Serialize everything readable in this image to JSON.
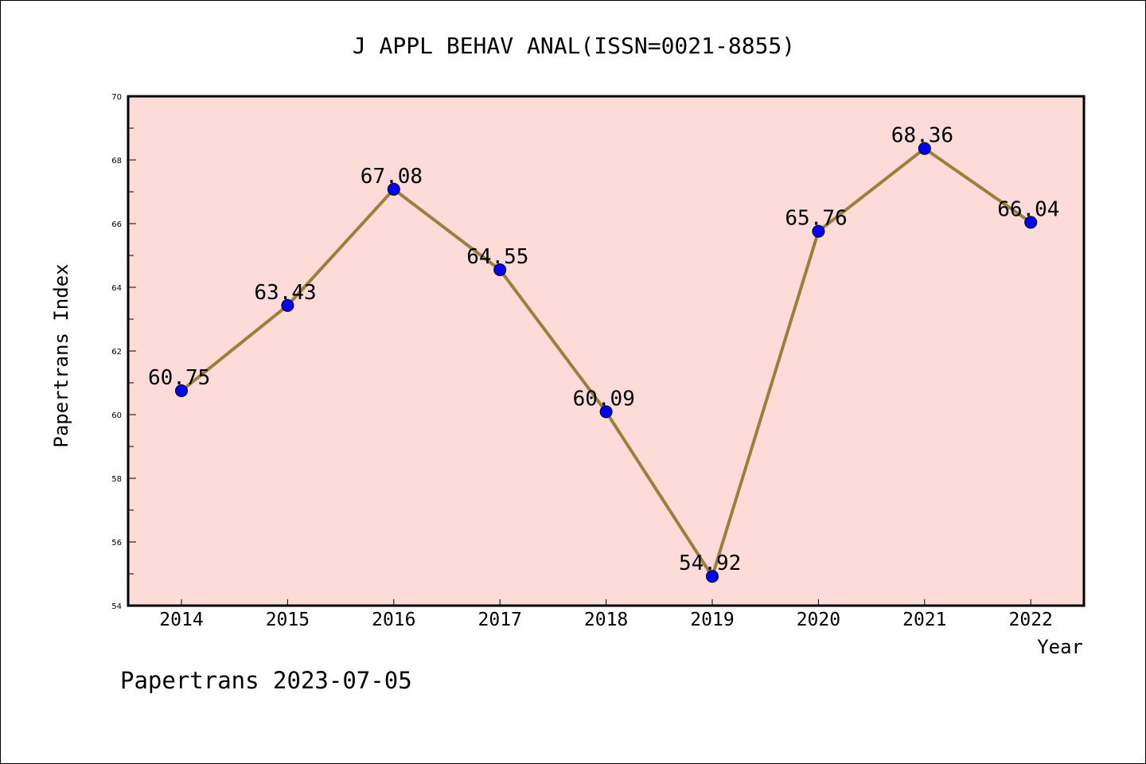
{
  "chart_data": {
    "type": "line",
    "title": "J APPL BEHAV ANAL(ISSN=0021-8855)",
    "xlabel": "Year",
    "ylabel": "Papertrans Index",
    "x": [
      "2014",
      "2015",
      "2016",
      "2017",
      "2018",
      "2019",
      "2020",
      "2021",
      "2022"
    ],
    "series": [
      {
        "name": "Papertrans Index",
        "values": [
          60.75,
          63.43,
          67.08,
          64.55,
          60.09,
          54.92,
          65.76,
          68.36,
          66.04
        ]
      }
    ],
    "value_labels": [
      "60.75",
      "63.43",
      "67.08",
      "64.55",
      "60.09",
      "54.92",
      "65.76",
      "68.36",
      "66.04"
    ],
    "ylim": [
      54,
      70
    ],
    "yticks": [
      "54",
      "56",
      "58",
      "60",
      "62",
      "64",
      "66",
      "68",
      "70"
    ],
    "grid": false,
    "footer": "Papertrans 2023-07-05",
    "colors": {
      "background": "#fddbd8",
      "line": "#9a8039",
      "marker": "#0000ff"
    }
  }
}
